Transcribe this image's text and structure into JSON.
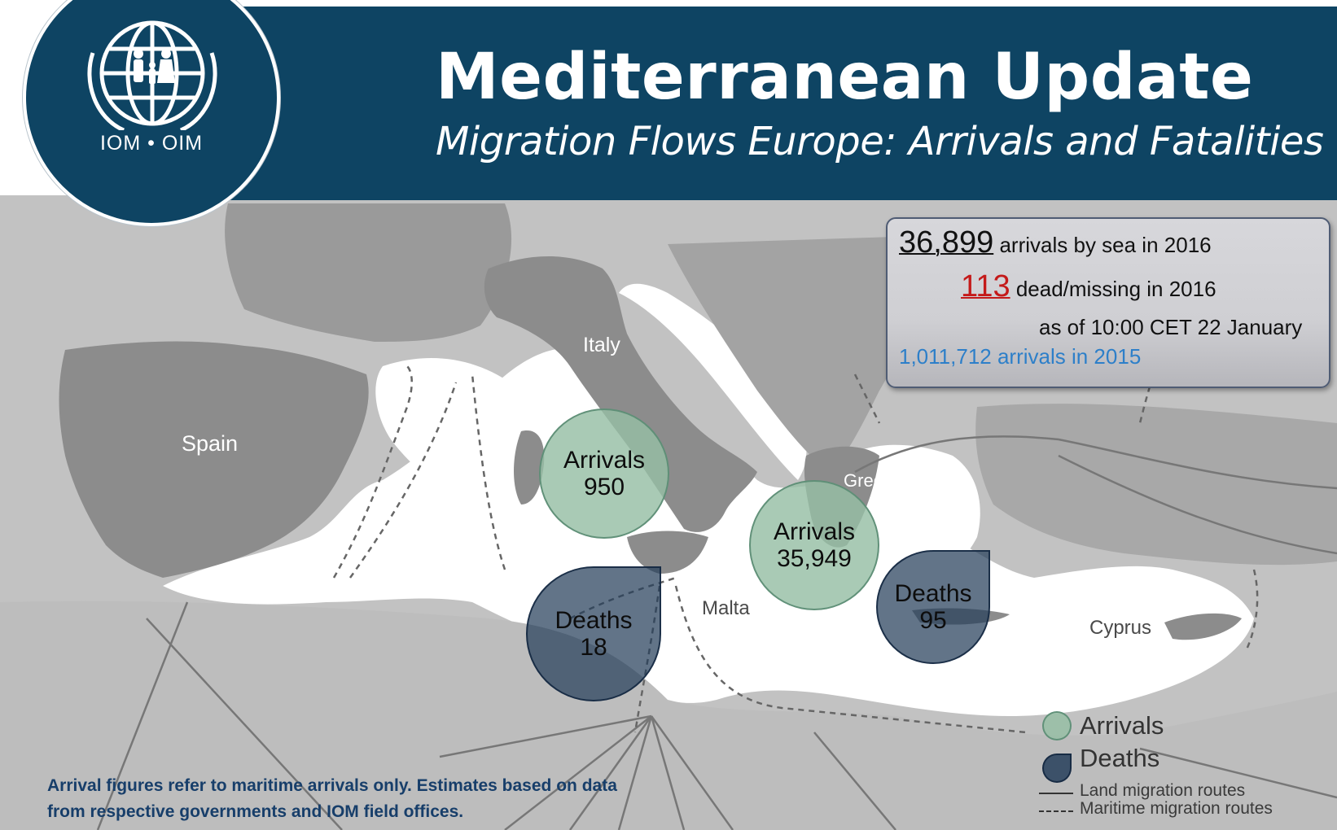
{
  "header": {
    "title": "Mediterranean Update",
    "subtitle": "Migration Flows Europe: Arrivals and Fatalities"
  },
  "logo": {
    "text": "IOM • OIM"
  },
  "stats": {
    "arrivals_2016_value": "36,899",
    "arrivals_2016_label": "arrivals by sea in 2016",
    "dead_2016_value": "113",
    "dead_2016_label": "dead/missing in 2016",
    "as_of": "as of 10:00 CET 22 January",
    "arrivals_2015": "1,011,712 arrivals in 2015"
  },
  "places": {
    "italy": "Italy",
    "spain": "Spain",
    "greece": "Greece",
    "malta": "Malta",
    "cyprus": "Cyprus"
  },
  "bubbles": {
    "italy_arrivals": {
      "label": "Arrivals",
      "value": "950"
    },
    "greece_arrivals": {
      "label": "Arrivals",
      "value": "35,949"
    },
    "italy_deaths": {
      "label": "Deaths",
      "value": "18"
    },
    "greece_deaths": {
      "label": "Deaths",
      "value": "95"
    }
  },
  "legend": {
    "arrivals": "Arrivals",
    "deaths": "Deaths",
    "land_routes": "Land migration  routes",
    "maritime_routes": "Maritime migration routes"
  },
  "footnote": {
    "line1": "Arrival figures  refer to maritime arrivals only. Estimates based on data",
    "line2": "from respective governments and IOM field offices."
  },
  "colors": {
    "banner": "#0e4463",
    "land": "#8c8c8c",
    "sea": "#ffffff",
    "arrivals_bubble": "#96bea5",
    "deaths_bubble": "#263e5a",
    "dead_highlight": "#c41a1a",
    "arrivals_2015": "#2d7fc9"
  }
}
